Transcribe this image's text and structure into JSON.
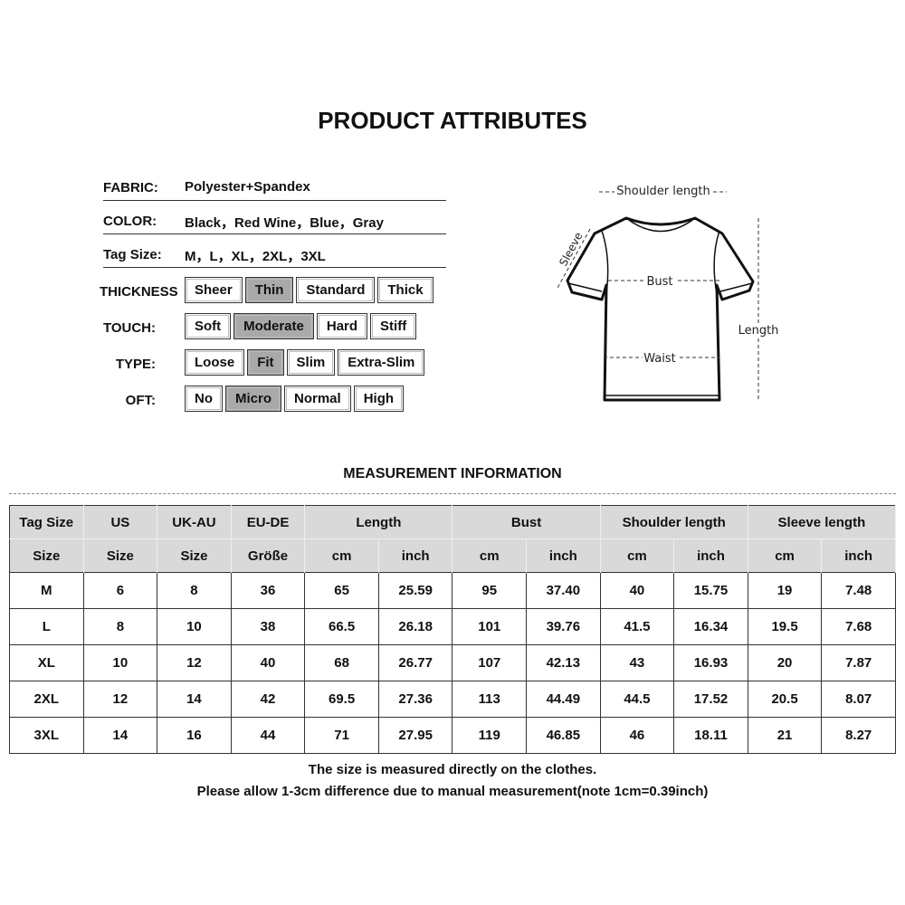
{
  "title": "PRODUCT ATTRIBUTES",
  "attributes": [
    {
      "label": "FABRIC:",
      "value": "Polyester+Spandex"
    },
    {
      "label": "COLOR:",
      "value": "Black，Red Wine，Blue，Gray"
    },
    {
      "label": "Tag Size:",
      "value": "M，L，XL，2XL，3XL"
    }
  ],
  "options": [
    {
      "label": "THICKNESS",
      "items": [
        "Sheer",
        "Thin",
        "Standard",
        "Thick"
      ],
      "selected": "Thin"
    },
    {
      "label": "TOUCH:",
      "items": [
        "Soft",
        "Moderate",
        "Hard",
        "Stiff"
      ],
      "selected": "Moderate"
    },
    {
      "label": "TYPE:",
      "items": [
        "Loose",
        "Fit",
        "Slim",
        "Extra-Slim"
      ],
      "selected": "Fit"
    },
    {
      "label": "OFT:",
      "items": [
        "No",
        "Micro",
        "Normal",
        "High"
      ],
      "selected": "Micro"
    }
  ],
  "diagram": {
    "shoulder": "Shoulder length",
    "sleeve": "Sleeve",
    "bust": "Bust",
    "waist": "Waist",
    "length": "Length"
  },
  "measurement_title": "MEASUREMENT INFORMATION",
  "table": {
    "header1": [
      "Tag Size",
      "US",
      "UK-AU",
      "EU-DE",
      "Length",
      "Bust",
      "Shoulder length",
      "Sleeve length"
    ],
    "header2": [
      "Size",
      "Size",
      "Size",
      "Größe",
      "cm",
      "inch",
      "cm",
      "inch",
      "cm",
      "inch",
      "cm",
      "inch"
    ],
    "rows": [
      [
        "M",
        "6",
        "8",
        "36",
        "65",
        "25.59",
        "95",
        "37.40",
        "40",
        "15.75",
        "19",
        "7.48"
      ],
      [
        "L",
        "8",
        "10",
        "38",
        "66.5",
        "26.18",
        "101",
        "39.76",
        "41.5",
        "16.34",
        "19.5",
        "7.68"
      ],
      [
        "XL",
        "10",
        "12",
        "40",
        "68",
        "26.77",
        "107",
        "42.13",
        "43",
        "16.93",
        "20",
        "7.87"
      ],
      [
        "2XL",
        "12",
        "14",
        "42",
        "69.5",
        "27.36",
        "113",
        "44.49",
        "44.5",
        "17.52",
        "20.5",
        "8.07"
      ],
      [
        "3XL",
        "14",
        "16",
        "44",
        "71",
        "27.95",
        "119",
        "46.85",
        "46",
        "18.11",
        "21",
        "8.27"
      ]
    ]
  },
  "notes": [
    "The size is measured directly on the clothes.",
    "Please allow 1-3cm difference due to manual measurement(note 1cm=0.39inch)"
  ]
}
